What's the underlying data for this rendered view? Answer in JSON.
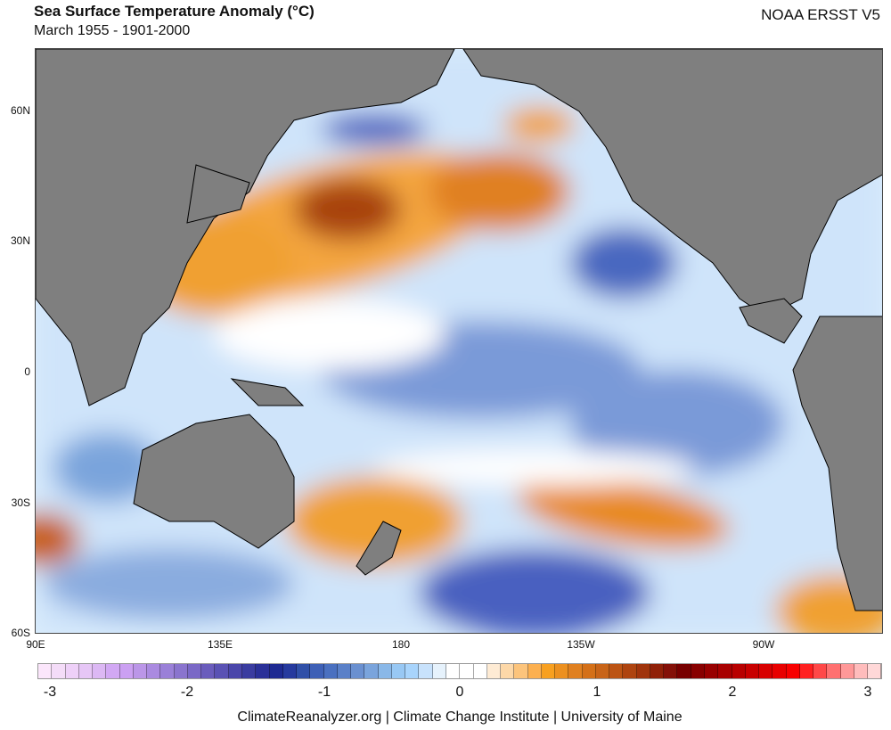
{
  "header": {
    "title": "Sea Surface Temperature Anomaly (°C)",
    "subtitle": "March 1955 - 1901-2000",
    "dataset": "NOAA ERSST V5"
  },
  "axes": {
    "lat_labels": [
      "60N",
      "30N",
      "0",
      "30S",
      "60S"
    ],
    "lon_labels": [
      "90E",
      "135E",
      "180",
      "135W",
      "90W"
    ]
  },
  "colorbar": {
    "ticks": [
      "-3",
      "-2",
      "-1",
      "0",
      "1",
      "2",
      "3"
    ],
    "colors": [
      "#fbe6fb",
      "#f4dcf8",
      "#eed0f8",
      "#e6c6f6",
      "#dcb8f4",
      "#d2a8f4",
      "#cba0f2",
      "#bb96e8",
      "#aa8ae0",
      "#9a80d8",
      "#8a74ce",
      "#7a68c6",
      "#6a5cbc",
      "#5a52b4",
      "#4a46aa",
      "#3a3ca0",
      "#2a3098",
      "#1e2a92",
      "#263a9e",
      "#3050a8",
      "#3e60b6",
      "#4a70c0",
      "#5a80c8",
      "#6a90d0",
      "#7aa4dc",
      "#8ab8e8",
      "#98c8f4",
      "#a8d4fc",
      "#c8e2fc",
      "#e6f2fc",
      "#ffffff",
      "#ffffff",
      "#ffffff",
      "#feebd4",
      "#fdd8a8",
      "#fcc47c",
      "#fcb050",
      "#f8a020",
      "#ec9020",
      "#e08020",
      "#d47018",
      "#c86418",
      "#bc5414",
      "#ae4410",
      "#a0340c",
      "#902008",
      "#841008",
      "#780000",
      "#880000",
      "#980000",
      "#a80000",
      "#b80000",
      "#c80000",
      "#d80000",
      "#e80000",
      "#f80000",
      "#ff2020",
      "#ff4848",
      "#ff7070",
      "#ff9898",
      "#ffbcbc",
      "#ffd8d8"
    ]
  },
  "colors": {
    "land": "#7f7f7f",
    "warm": "#ec9020",
    "cool": "#5a80c8"
  },
  "footer": {
    "credit": "ClimateReanalyzer.org | Climate Change Institute | University of Maine"
  }
}
